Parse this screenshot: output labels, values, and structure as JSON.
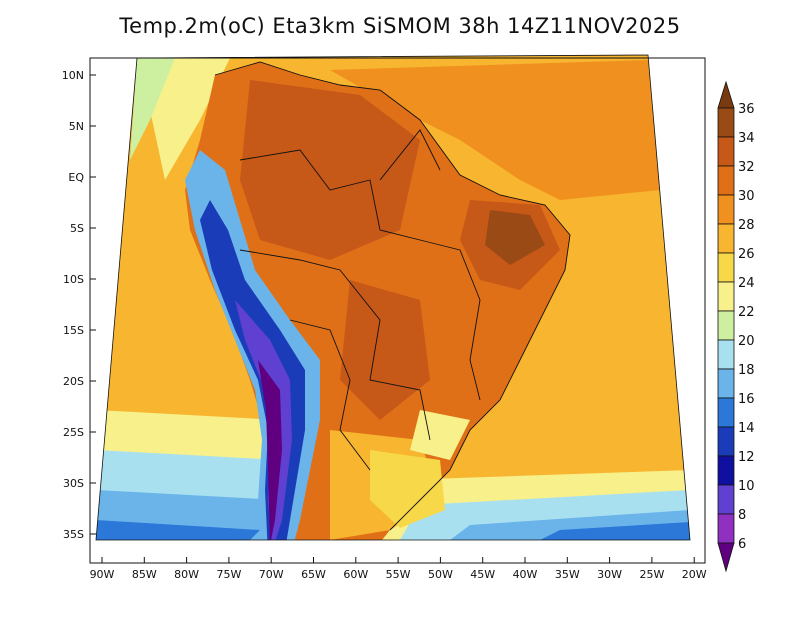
{
  "title": "Temp.2m(oC) Eta3km SiSMOM 38h 14Z11NOV2025",
  "lat_labels": [
    "10N",
    "5N",
    "EQ",
    "5S",
    "10S",
    "15S",
    "20S",
    "25S",
    "30S",
    "35S"
  ],
  "lon_labels": [
    "90W",
    "85W",
    "80W",
    "75W",
    "70W",
    "65W",
    "60W",
    "55W",
    "50W",
    "45W",
    "40W",
    "35W",
    "30W",
    "25W",
    "20W"
  ],
  "colorbar": {
    "labels": [
      "36",
      "34",
      "32",
      "30",
      "28",
      "26",
      "24",
      "22",
      "20",
      "18",
      "16",
      "14",
      "12",
      "10",
      "8",
      "6"
    ],
    "colors": [
      "#7a3a10",
      "#9a4a14",
      "#c65818",
      "#e07018",
      "#f0901e",
      "#f7b530",
      "#f7d848",
      "#f8f08a",
      "#cdf0a0",
      "#a8e0f0",
      "#6ab4ea",
      "#2c78d8",
      "#1a3cb8",
      "#1010a0",
      "#6040d0",
      "#9030c0",
      "#600080"
    ]
  }
}
